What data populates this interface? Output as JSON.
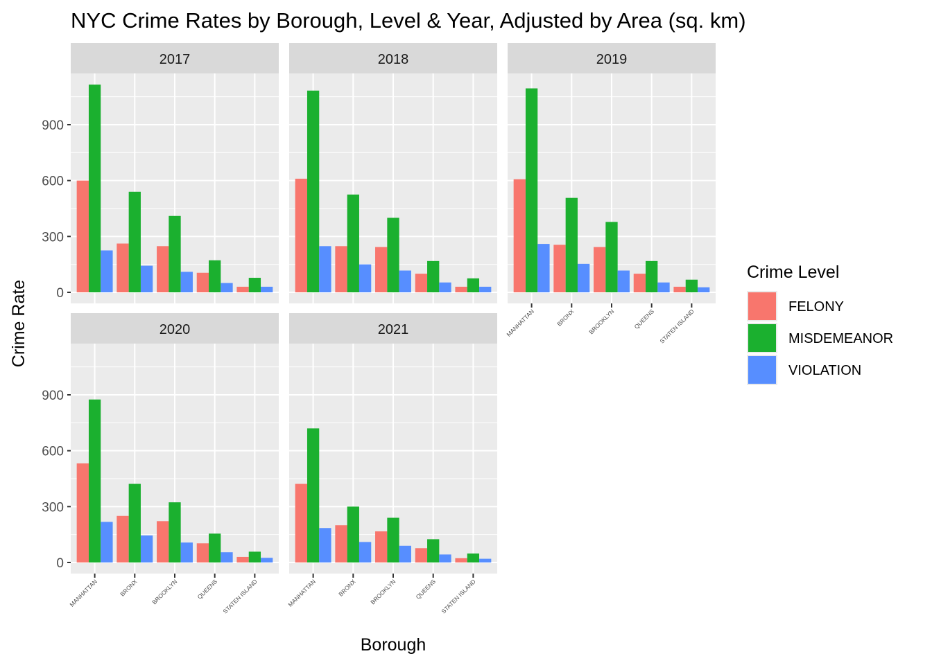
{
  "chart_data": {
    "type": "bar",
    "title": "NYC Crime Rates by Borough, Level & Year, Adjusted by Area (sq. km)",
    "xlabel": "Borough",
    "ylabel": "Crime Rate",
    "ylim": [
      0,
      1200
    ],
    "yticks": [
      0,
      300,
      600,
      900
    ],
    "categories": [
      "MANHATTAN",
      "BRONX",
      "BROOKLYN",
      "QUEENS",
      "STATEN ISLAND"
    ],
    "legend": {
      "title": "Crime Level",
      "placement": "right",
      "entries": [
        "FELONY",
        "MISDEMEANOR",
        "VIOLATION"
      ]
    },
    "colors": {
      "FELONY": "#F8766D",
      "MISDEMEANOR": "#1BB02F",
      "VIOLATION": "#578EFF",
      "panel_bg": "#EBEBEB",
      "strip_bg": "#D9D9D9",
      "grid": "#FFFFFF"
    },
    "facets": [
      {
        "label": "2017",
        "series": [
          {
            "name": "FELONY",
            "values": [
              600,
              262,
              248,
              105,
              30
            ]
          },
          {
            "name": "MISDEMEANOR",
            "values": [
              1115,
              540,
              410,
              172,
              78
            ]
          },
          {
            "name": "VIOLATION",
            "values": [
              225,
              143,
              110,
              50,
              30
            ]
          }
        ]
      },
      {
        "label": "2018",
        "series": [
          {
            "name": "FELONY",
            "values": [
              610,
              248,
              243,
              100,
              30
            ]
          },
          {
            "name": "MISDEMEANOR",
            "values": [
              1083,
              525,
              400,
              168,
              75
            ]
          },
          {
            "name": "VIOLATION",
            "values": [
              248,
              150,
              117,
              53,
              30
            ]
          }
        ]
      },
      {
        "label": "2019",
        "series": [
          {
            "name": "FELONY",
            "values": [
              607,
              255,
              243,
              100,
              30
            ]
          },
          {
            "name": "MISDEMEANOR",
            "values": [
              1095,
              507,
              378,
              168,
              68
            ]
          },
          {
            "name": "VIOLATION",
            "values": [
              260,
              153,
              117,
              53,
              27
            ]
          }
        ]
      },
      {
        "label": "2020",
        "series": [
          {
            "name": "FELONY",
            "values": [
              532,
              250,
              222,
              103,
              30
            ]
          },
          {
            "name": "MISDEMEANOR",
            "values": [
              875,
              422,
              323,
              155,
              58
            ]
          },
          {
            "name": "VIOLATION",
            "values": [
              218,
              145,
              107,
              55,
              25
            ]
          }
        ]
      },
      {
        "label": "2021",
        "series": [
          {
            "name": "FELONY",
            "values": [
              422,
              200,
              167,
              77,
              23
            ]
          },
          {
            "name": "MISDEMEANOR",
            "values": [
              720,
              300,
              240,
              125,
              48
            ]
          },
          {
            "name": "VIOLATION",
            "values": [
              185,
              110,
              90,
              43,
              20
            ]
          }
        ]
      }
    ]
  }
}
